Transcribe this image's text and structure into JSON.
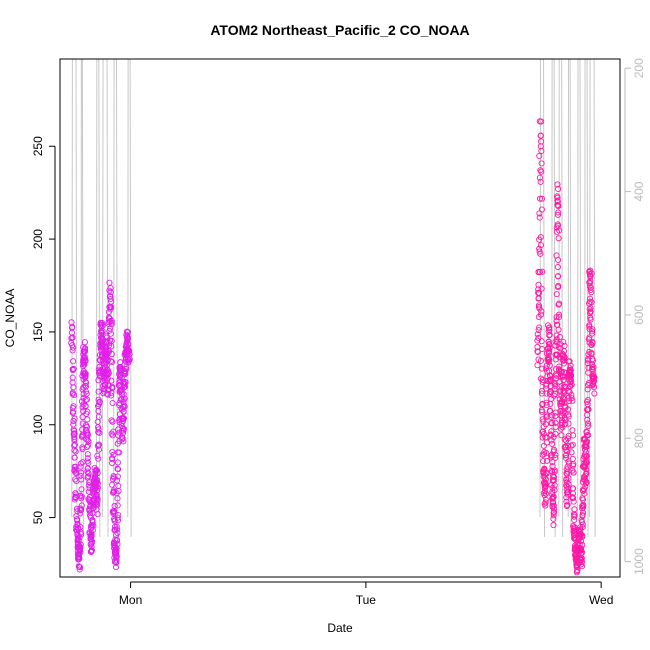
{
  "chart_data": {
    "type": "scatter",
    "title": "ATOM2 Northeast_Pacific_2 CO_NOAA",
    "xlabel": "Date",
    "ylabel": "CO_NOAA",
    "x_ticks": [
      "Mon",
      "Tue",
      "Wed"
    ],
    "xlim_days": [
      -0.3,
      2.08
    ],
    "y_ticks": [
      50,
      100,
      150,
      200,
      250
    ],
    "ylim": [
      18,
      297
    ],
    "y2_ticks": [
      200,
      400,
      600,
      800,
      1000
    ],
    "y2lim": [
      1025,
      185
    ],
    "grid": false,
    "legend": "none",
    "point_color_left": "#e020e8",
    "point_color_right": "#ff1aa6",
    "line_color": "#c8c8c8",
    "series": [
      {
        "segments": [
          [
            [
              -0.25,
              145
            ],
            [
              -0.249,
              152
            ],
            [
              -0.246,
              130
            ],
            [
              -0.244,
              118
            ],
            [
              -0.242,
              105
            ],
            [
              -0.24,
              95
            ],
            [
              -0.238,
              88
            ],
            [
              -0.236,
              80
            ],
            [
              -0.234,
              72
            ],
            [
              -0.232,
              60
            ],
            [
              -0.23,
              52
            ],
            [
              -0.228,
              45
            ],
            [
              -0.226,
              40
            ],
            [
              -0.224,
              36
            ],
            [
              -0.222,
              32
            ],
            [
              -0.22,
              28
            ],
            [
              -0.218,
              25
            ],
            [
              -0.216,
              30
            ],
            [
              -0.214,
              40
            ],
            [
              -0.212,
              55
            ],
            [
              -0.21,
              65
            ],
            [
              -0.208,
              80
            ],
            [
              -0.206,
              95
            ],
            [
              -0.204,
              110
            ],
            [
              -0.202,
              122
            ],
            [
              -0.2,
              130
            ],
            [
              -0.198,
              138
            ],
            [
              -0.196,
              140
            ],
            [
              -0.194,
              135
            ],
            [
              -0.192,
              128
            ],
            [
              -0.19,
              118
            ],
            [
              -0.188,
              108
            ],
            [
              -0.186,
              100
            ],
            [
              -0.184,
              95
            ],
            [
              -0.182,
              85
            ],
            [
              -0.18,
              78
            ],
            [
              -0.178,
              70
            ],
            [
              -0.176,
              62
            ],
            [
              -0.174,
              55
            ],
            [
              -0.172,
              48
            ],
            [
              -0.17,
              42
            ],
            [
              -0.168,
              38
            ],
            [
              -0.166,
              35
            ],
            [
              -0.164,
              32
            ]
          ],
          [
            [
              -0.162,
              45
            ],
            [
              -0.16,
              52
            ],
            [
              -0.158,
              58
            ],
            [
              -0.156,
              62
            ],
            [
              -0.154,
              66
            ],
            [
              -0.152,
              70
            ],
            [
              -0.15,
              74
            ],
            [
              -0.148,
              72
            ],
            [
              -0.146,
              65
            ],
            [
              -0.144,
              60
            ],
            [
              -0.142,
              55
            ],
            [
              -0.14,
              70
            ],
            [
              -0.138,
              88
            ],
            [
              -0.136,
              100
            ],
            [
              -0.134,
              112
            ],
            [
              -0.132,
              125
            ],
            [
              -0.13,
              135
            ],
            [
              -0.128,
              142
            ],
            [
              -0.126,
              148
            ],
            [
              -0.124,
              152
            ],
            [
              -0.122,
              150
            ],
            [
              -0.12,
              145
            ],
            [
              -0.118,
              140
            ],
            [
              -0.116,
              132
            ],
            [
              -0.114,
              125
            ],
            [
              -0.112,
              120
            ],
            [
              -0.11,
              128
            ],
            [
              -0.108,
              135
            ],
            [
              -0.106,
              140
            ],
            [
              -0.104,
              145
            ],
            [
              -0.102,
              138
            ],
            [
              -0.1,
              130
            ],
            [
              -0.098,
              125
            ],
            [
              -0.096,
              120
            ],
            [
              -0.094,
              130
            ],
            [
              -0.092,
              142
            ],
            [
              -0.09,
              155
            ],
            [
              -0.088,
              165
            ],
            [
              -0.086,
              172
            ],
            [
              -0.084,
              160
            ],
            [
              -0.082,
              140
            ],
            [
              -0.08,
              120
            ],
            [
              -0.078,
              100
            ],
            [
              -0.076,
              80
            ],
            [
              -0.074,
              65
            ],
            [
              -0.072,
              55
            ],
            [
              -0.07,
              45
            ],
            [
              -0.068,
              38
            ],
            [
              -0.066,
              32
            ],
            [
              -0.064,
              28
            ],
            [
              -0.062,
              26
            ],
            [
              -0.06,
              30
            ],
            [
              -0.058,
              40
            ],
            [
              -0.056,
              55
            ],
            [
              -0.054,
              70
            ],
            [
              -0.052,
              85
            ],
            [
              -0.05,
              100
            ],
            [
              -0.048,
              115
            ],
            [
              -0.046,
              125
            ],
            [
              -0.044,
              130
            ],
            [
              -0.042,
              128
            ],
            [
              -0.04,
              120
            ],
            [
              -0.038,
              110
            ],
            [
              -0.036,
              100
            ],
            [
              -0.034,
              95
            ],
            [
              -0.032,
              100
            ],
            [
              -0.03,
              108
            ],
            [
              -0.028,
              115
            ],
            [
              -0.026,
              122
            ],
            [
              -0.024,
              128
            ],
            [
              -0.022,
              133
            ],
            [
              -0.02,
              138
            ],
            [
              -0.018,
              142
            ],
            [
              -0.016,
              145
            ],
            [
              -0.014,
              146
            ],
            [
              -0.012,
              143
            ],
            [
              -0.01,
              140
            ],
            [
              -0.008,
              138
            ],
            [
              -0.006,
              136
            ]
          ]
        ]
      },
      {
        "segments": [
          [
            [
              1.73,
              135
            ],
            [
              1.732,
              148
            ],
            [
              1.734,
              160
            ],
            [
              1.736,
              175
            ],
            [
              1.738,
              190
            ],
            [
              1.74,
              230
            ],
            [
              1.742,
              264
            ],
            [
              1.744,
              236
            ],
            [
              1.746,
              170
            ],
            [
              1.748,
              130
            ],
            [
              1.75,
              112
            ],
            [
              1.752,
              100
            ],
            [
              1.754,
              85
            ],
            [
              1.756,
              75
            ],
            [
              1.758,
              70
            ],
            [
              1.76,
              65
            ],
            [
              1.762,
              60
            ],
            [
              1.764,
              70
            ],
            [
              1.766,
              90
            ],
            [
              1.768,
              110
            ],
            [
              1.77,
              125
            ],
            [
              1.772,
              135
            ],
            [
              1.774,
              142
            ],
            [
              1.776,
              150
            ],
            [
              1.778,
              145
            ],
            [
              1.78,
              135
            ],
            [
              1.782,
              125
            ],
            [
              1.784,
              118
            ],
            [
              1.786,
              108
            ],
            [
              1.788,
              95
            ],
            [
              1.79,
              85
            ],
            [
              1.792,
              70
            ],
            [
              1.794,
              60
            ],
            [
              1.796,
              50
            ],
            [
              1.798,
              55
            ],
            [
              1.8,
              70
            ],
            [
              1.802,
              90
            ],
            [
              1.804,
              110
            ],
            [
              1.806,
              125
            ],
            [
              1.808,
              135
            ],
            [
              1.81,
              145
            ],
            [
              1.812,
              160
            ],
            [
              1.814,
              200
            ],
            [
              1.816,
              220
            ],
            [
              1.818,
              227
            ],
            [
              1.82,
              180
            ],
            [
              1.822,
              150
            ],
            [
              1.824,
              135
            ],
            [
              1.826,
              125
            ],
            [
              1.828,
              115
            ],
            [
              1.83,
              105
            ],
            [
              1.832,
              98
            ],
            [
              1.834,
              110
            ],
            [
              1.836,
              125
            ],
            [
              1.838,
              138
            ],
            [
              1.84,
              140
            ],
            [
              1.842,
              130
            ],
            [
              1.844,
              120
            ],
            [
              1.846,
              112
            ],
            [
              1.848,
              100
            ],
            [
              1.85,
              88
            ],
            [
              1.852,
              75
            ],
            [
              1.854,
              65
            ],
            [
              1.856,
              60
            ],
            [
              1.858,
              70
            ],
            [
              1.86,
              90
            ],
            [
              1.862,
              110
            ],
            [
              1.864,
              125
            ],
            [
              1.866,
              133
            ],
            [
              1.868,
              130
            ],
            [
              1.87,
              125
            ],
            [
              1.872,
              120
            ],
            [
              1.874,
              112
            ]
          ],
          [
            [
              1.876,
              95
            ],
            [
              1.878,
              80
            ],
            [
              1.88,
              65
            ],
            [
              1.882,
              55
            ],
            [
              1.884,
              45
            ],
            [
              1.886,
              40
            ],
            [
              1.888,
              36
            ],
            [
              1.89,
              32
            ],
            [
              1.892,
              30
            ],
            [
              1.894,
              28
            ],
            [
              1.896,
              26
            ],
            [
              1.898,
              25
            ],
            [
              1.9,
              28
            ],
            [
              1.902,
              32
            ],
            [
              1.904,
              38
            ],
            [
              1.906,
              42
            ],
            [
              1.908,
              45
            ],
            [
              1.91,
              40
            ],
            [
              1.912,
              35
            ],
            [
              1.914,
              30
            ],
            [
              1.916,
              28
            ],
            [
              1.918,
              35
            ],
            [
              1.92,
              45
            ],
            [
              1.922,
              55
            ],
            [
              1.924,
              62
            ],
            [
              1.926,
              70
            ],
            [
              1.928,
              80
            ],
            [
              1.93,
              90
            ],
            [
              1.932,
              85
            ],
            [
              1.934,
              75
            ],
            [
              1.936,
              70
            ],
            [
              1.938,
              78
            ],
            [
              1.94,
              90
            ],
            [
              1.942,
              100
            ],
            [
              1.944,
              112
            ],
            [
              1.946,
              125
            ],
            [
              1.948,
              140
            ],
            [
              1.95,
              155
            ],
            [
              1.952,
              170
            ],
            [
              1.954,
              182
            ],
            [
              1.956,
              175
            ],
            [
              1.958,
              160
            ],
            [
              1.96,
              145
            ],
            [
              1.962,
              135
            ],
            [
              1.964,
              128
            ],
            [
              1.966,
              125
            ],
            [
              1.968,
              122
            ],
            [
              1.97,
              120
            ]
          ]
        ]
      }
    ],
    "spikes_left": [
      [
        -0.25,
        -0.232
      ],
      [
        -0.21,
        -0.205
      ],
      [
        -0.145,
        -0.135
      ],
      [
        -0.12,
        -0.1
      ],
      [
        -0.072,
        -0.06
      ],
      [
        -0.012,
        -0.002
      ]
    ],
    "spikes_right": [
      [
        1.74,
        1.755
      ],
      [
        1.79,
        1.8
      ],
      [
        1.82,
        1.832
      ],
      [
        1.86,
        1.868
      ],
      [
        1.9,
        1.91
      ],
      [
        1.93,
        1.94
      ],
      [
        1.95,
        1.97
      ]
    ]
  }
}
